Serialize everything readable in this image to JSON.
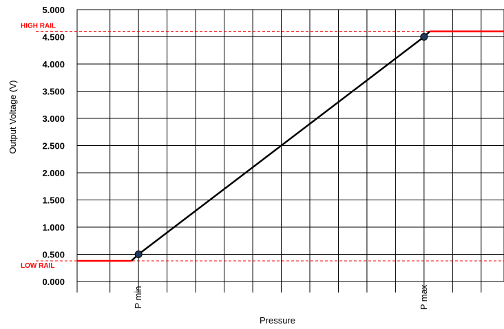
{
  "chart_data": {
    "type": "line",
    "title": "",
    "xlabel": "Pressure",
    "ylabel": "Output Voltage (V)",
    "ylim": [
      0,
      5
    ],
    "y_ticks": [
      "0.000",
      "0.500",
      "1.000",
      "1.500",
      "2.000",
      "2.500",
      "3.000",
      "3.500",
      "4.000",
      "4.500",
      "5.000"
    ],
    "x_tick_labels": [
      {
        "label": "P min",
        "x": 0
      },
      {
        "label": "P max",
        "x": 10
      }
    ],
    "grid": true,
    "xlim": [
      -2.15,
      12.8
    ],
    "x_grid": [
      -1,
      0,
      1,
      2,
      3,
      4,
      5,
      6,
      7,
      8,
      9,
      10,
      11,
      12
    ],
    "series": [
      {
        "role": "transfer",
        "color": "#000000",
        "points": [
          [
            -0.25,
            0.38
          ],
          [
            0,
            0.5
          ],
          [
            10,
            4.5
          ],
          [
            10.2,
            4.6
          ]
        ]
      },
      {
        "role": "low-rail-segment",
        "color": "#ff0000",
        "points": [
          [
            -2.15,
            0.38
          ],
          [
            -0.25,
            0.38
          ]
        ]
      },
      {
        "role": "high-rail-segment",
        "color": "#ff0000",
        "points": [
          [
            10.2,
            4.6
          ],
          [
            12.8,
            4.6
          ]
        ]
      }
    ],
    "markers": [
      {
        "name": "pmin-point",
        "x": 0,
        "y": 0.5,
        "color": "#1f3a5f"
      },
      {
        "name": "pmax-point",
        "x": 10,
        "y": 4.5,
        "color": "#1f3a5f"
      }
    ],
    "rails": [
      {
        "name": "high-rail",
        "label": "HIGH RAIL",
        "y": 4.6,
        "color": "#ff0000"
      },
      {
        "name": "low-rail",
        "label": "LOW RAIL",
        "y": 0.38,
        "color": "#ff0000"
      }
    ]
  }
}
